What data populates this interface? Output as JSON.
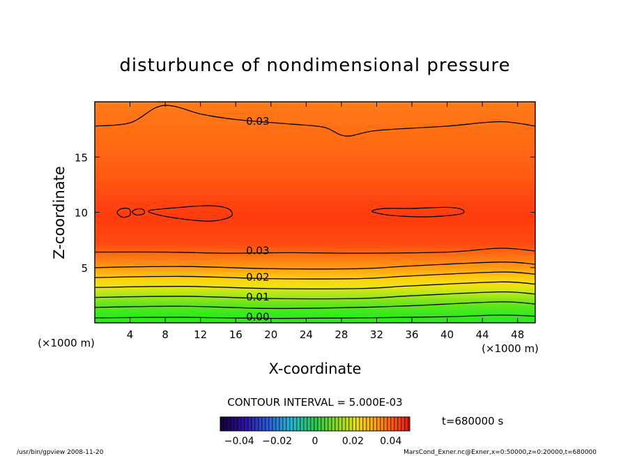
{
  "chart_data": {
    "type": "heatmap",
    "title": "disturbunce of nondimensional pressure",
    "xlabel": "X-coordinate",
    "ylabel": "Z-coordinate",
    "x_unit": "(×1000 m)",
    "y_unit": "(×1000 m)",
    "xlim": [
      0,
      50
    ],
    "ylim": [
      0,
      20
    ],
    "x_ticks": [
      4,
      8,
      12,
      16,
      20,
      24,
      28,
      32,
      36,
      40,
      44,
      48
    ],
    "y_ticks": [
      5,
      10,
      15
    ],
    "contour_interval_text": "CONTOUR INTERVAL = 5.000E-03",
    "time_text": "t=680000 s",
    "colorbar": {
      "range": [
        -0.05,
        0.05
      ],
      "tick_values": [
        -0.04,
        -0.02,
        0,
        0.02,
        0.04
      ],
      "tick_labels": [
        "−0.04",
        "−0.02",
        "0",
        "0.02",
        "0.04"
      ]
    },
    "contour_labels": [
      {
        "text": "0.03",
        "x": 18.5,
        "z": 18.3
      },
      {
        "text": "0.03",
        "x": 18.5,
        "z": 6.6
      },
      {
        "text": "0.02",
        "x": 18.5,
        "z": 4.2
      },
      {
        "text": "0.01",
        "x": 18.5,
        "z": 2.4
      },
      {
        "text": "0.00",
        "x": 18.5,
        "z": 0.6
      }
    ],
    "contours": [
      {
        "level": 0.0,
        "points": [
          [
            0,
            0.45
          ],
          [
            10,
            0.5
          ],
          [
            20,
            0.4
          ],
          [
            30,
            0.45
          ],
          [
            40,
            0.55
          ],
          [
            46,
            0.7
          ],
          [
            50,
            0.6
          ]
        ]
      },
      {
        "level": 0.005,
        "points": [
          [
            0,
            1.4
          ],
          [
            10,
            1.5
          ],
          [
            20,
            1.3
          ],
          [
            30,
            1.4
          ],
          [
            36,
            1.55
          ],
          [
            46,
            1.9
          ],
          [
            50,
            1.7
          ]
        ]
      },
      {
        "level": 0.01,
        "points": [
          [
            0,
            2.3
          ],
          [
            10,
            2.4
          ],
          [
            20,
            2.2
          ],
          [
            30,
            2.2
          ],
          [
            36,
            2.45
          ],
          [
            46,
            2.8
          ],
          [
            50,
            2.6
          ]
        ]
      },
      {
        "level": 0.015,
        "points": [
          [
            0,
            3.2
          ],
          [
            10,
            3.3
          ],
          [
            20,
            3.1
          ],
          [
            30,
            3.1
          ],
          [
            36,
            3.35
          ],
          [
            46,
            3.7
          ],
          [
            50,
            3.5
          ]
        ]
      },
      {
        "level": 0.02,
        "points": [
          [
            0,
            4.1
          ],
          [
            10,
            4.2
          ],
          [
            20,
            4.0
          ],
          [
            30,
            4.0
          ],
          [
            36,
            4.25
          ],
          [
            46,
            4.6
          ],
          [
            50,
            4.4
          ]
        ]
      },
      {
        "level": 0.025,
        "points": [
          [
            0,
            5.0
          ],
          [
            10,
            5.1
          ],
          [
            20,
            4.9
          ],
          [
            30,
            4.9
          ],
          [
            36,
            5.15
          ],
          [
            46,
            5.5
          ],
          [
            50,
            5.3
          ]
        ]
      },
      {
        "level": 0.03,
        "points": [
          [
            0,
            6.4
          ],
          [
            8,
            6.4
          ],
          [
            15,
            6.3
          ],
          [
            22,
            6.35
          ],
          [
            30,
            6.3
          ],
          [
            40,
            6.4
          ],
          [
            46,
            6.75
          ],
          [
            50,
            6.5
          ]
        ]
      },
      {
        "level": 0.03,
        "points": [
          [
            0,
            17.8
          ],
          [
            4,
            18.1
          ],
          [
            7,
            19.5
          ],
          [
            9,
            19.6
          ],
          [
            12,
            18.9
          ],
          [
            16,
            18.4
          ],
          [
            22,
            18.0
          ],
          [
            26,
            17.7
          ],
          [
            28.5,
            16.9
          ],
          [
            32,
            17.4
          ],
          [
            40,
            17.8
          ],
          [
            46,
            18.2
          ],
          [
            50,
            17.8
          ]
        ]
      },
      {
        "level": 0.035,
        "closed": true,
        "points": [
          [
            6.4,
            9.95
          ],
          [
            9,
            9.5
          ],
          [
            13,
            9.2
          ],
          [
            15.4,
            9.6
          ],
          [
            15.2,
            10.3
          ],
          [
            13,
            10.6
          ],
          [
            9,
            10.4
          ],
          [
            6.4,
            10.2
          ]
        ]
      },
      {
        "level": 0.035,
        "closed": true,
        "points": [
          [
            2.6,
            9.85
          ],
          [
            3.2,
            9.55
          ],
          [
            4,
            9.75
          ],
          [
            3.9,
            10.3
          ],
          [
            3.1,
            10.35
          ],
          [
            2.6,
            10.1
          ]
        ]
      },
      {
        "level": 0.035,
        "closed": true,
        "points": [
          [
            4.3,
            9.95
          ],
          [
            4.8,
            9.75
          ],
          [
            5.6,
            9.9
          ],
          [
            5.5,
            10.25
          ],
          [
            4.8,
            10.3
          ],
          [
            4.3,
            10.1
          ]
        ]
      },
      {
        "level": 0.035,
        "closed": true,
        "points": [
          [
            31.7,
            10.0
          ],
          [
            34,
            9.7
          ],
          [
            38,
            9.6
          ],
          [
            41.5,
            9.85
          ],
          [
            41.7,
            10.25
          ],
          [
            40,
            10.45
          ],
          [
            36,
            10.35
          ],
          [
            33,
            10.35
          ],
          [
            31.7,
            10.2
          ]
        ]
      }
    ]
  },
  "footer": {
    "left": "/usr/bin/gpview   2008-11-20",
    "right": "MarsCond_Exner.nc@Exner,x=0:50000,z=0:20000,t=680000"
  }
}
